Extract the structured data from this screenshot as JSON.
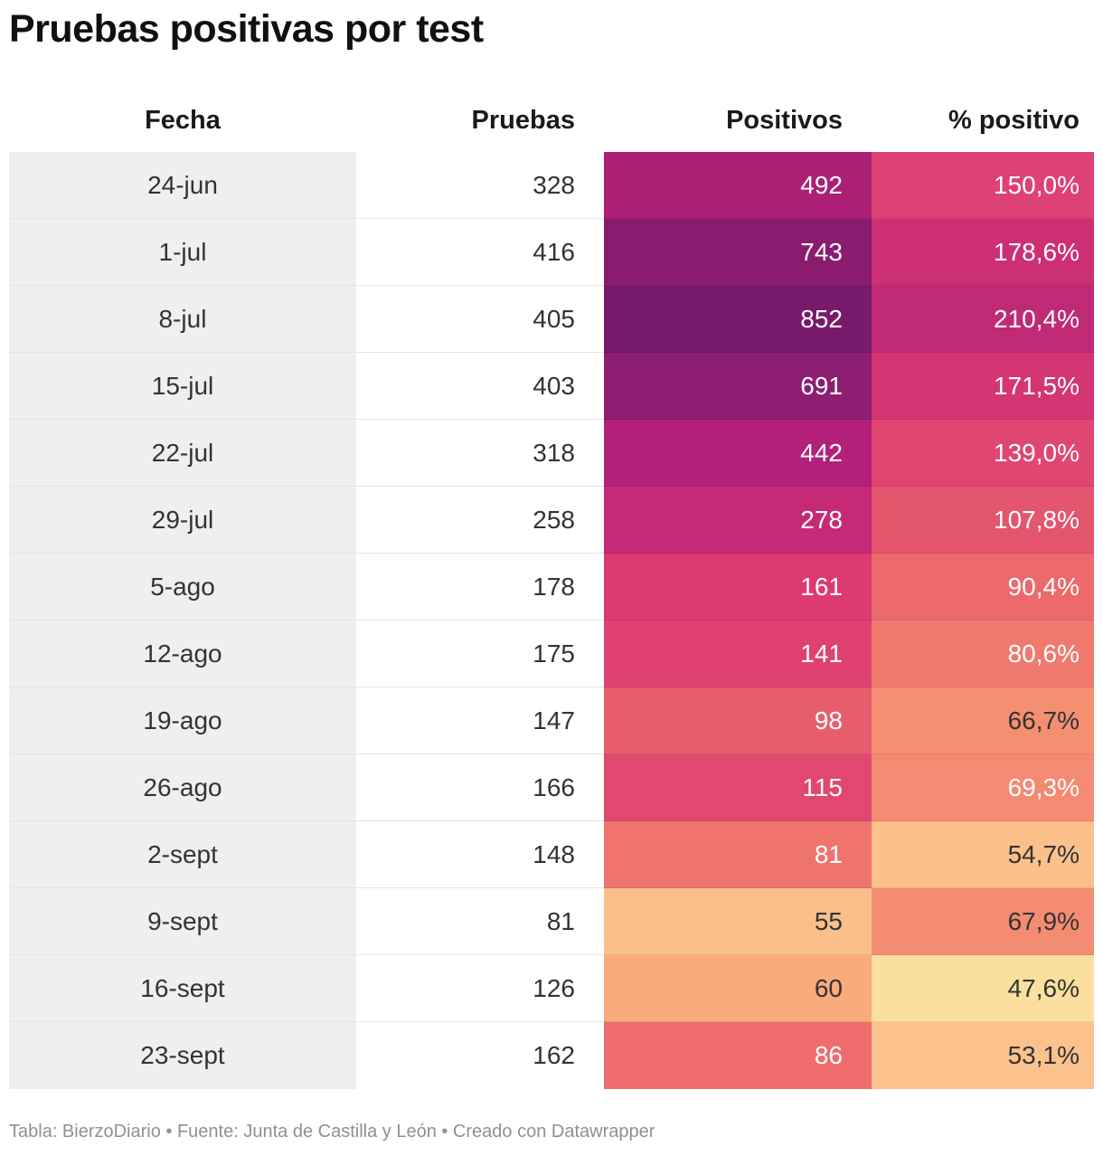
{
  "title": "Pruebas positivas por test",
  "footer": "Tabla: BierzoDiario • Fuente: Junta de Castilla y León • Creado con Datawrapper",
  "chart_data": {
    "type": "table",
    "title": "Pruebas positivas por test",
    "columns": [
      "Fecha",
      "Pruebas",
      "Positivos",
      "% positivo"
    ],
    "rows": [
      {
        "fecha": "24-jun",
        "pruebas": "328",
        "positivos": "492",
        "pct": "150,0%",
        "pos_color": "#ab2074",
        "pct_color": "#de4173",
        "pos_text": "#ffffff",
        "pct_text": "#ffffff"
      },
      {
        "fecha": "1-jul",
        "pruebas": "416",
        "positivos": "743",
        "pct": "178,6%",
        "pos_color": "#891c6f",
        "pct_color": "#cd2f75",
        "pos_text": "#ffffff",
        "pct_text": "#ffffff"
      },
      {
        "fecha": "8-jul",
        "pruebas": "405",
        "positivos": "852",
        "pct": "210,4%",
        "pos_color": "#771a6c",
        "pct_color": "#c02a74",
        "pos_text": "#ffffff",
        "pct_text": "#ffffff"
      },
      {
        "fecha": "15-jul",
        "pruebas": "403",
        "positivos": "691",
        "pct": "171,5%",
        "pos_color": "#8e1e71",
        "pct_color": "#d43573",
        "pos_text": "#ffffff",
        "pct_text": "#ffffff"
      },
      {
        "fecha": "22-jul",
        "pruebas": "318",
        "positivos": "442",
        "pct": "139,0%",
        "pos_color": "#b3207a",
        "pct_color": "#e04672",
        "pos_text": "#ffffff",
        "pct_text": "#ffffff"
      },
      {
        "fecha": "29-jul",
        "pruebas": "258",
        "positivos": "278",
        "pct": "107,8%",
        "pos_color": "#c62a77",
        "pct_color": "#e3566d",
        "pos_text": "#ffffff",
        "pct_text": "#ffffff"
      },
      {
        "fecha": "5-ago",
        "pruebas": "178",
        "positivos": "161",
        "pct": "90,4%",
        "pos_color": "#dd3a72",
        "pct_color": "#ec6a6c",
        "pos_text": "#ffffff",
        "pct_text": "#ffffff"
      },
      {
        "fecha": "12-ago",
        "pruebas": "175",
        "positivos": "141",
        "pct": "80,6%",
        "pos_color": "#df4272",
        "pct_color": "#f07a6e",
        "pos_text": "#ffffff",
        "pct_text": "#ffffff"
      },
      {
        "fecha": "19-ago",
        "pruebas": "147",
        "positivos": "98",
        "pct": "66,7%",
        "pos_color": "#e65e6c",
        "pct_color": "#f58f72",
        "pos_text": "#ffffff",
        "pct_text": "#333333"
      },
      {
        "fecha": "26-ago",
        "pruebas": "166",
        "positivos": "115",
        "pct": "69,3%",
        "pos_color": "#e1486f",
        "pct_color": "#f48a71",
        "pos_text": "#ffffff",
        "pct_text": "#ffffff"
      },
      {
        "fecha": "2-sept",
        "pruebas": "148",
        "positivos": "81",
        "pct": "54,7%",
        "pos_color": "#ef746e",
        "pct_color": "#fcc08b",
        "pos_text": "#ffffff",
        "pct_text": "#333333"
      },
      {
        "fecha": "9-sept",
        "pruebas": "81",
        "positivos": "55",
        "pct": "67,9%",
        "pos_color": "#fbbf8a",
        "pct_color": "#f48c72",
        "pos_text": "#333333",
        "pct_text": "#333333"
      },
      {
        "fecha": "16-sept",
        "pruebas": "126",
        "positivos": "60",
        "pct": "47,6%",
        "pos_color": "#f9ab7b",
        "pct_color": "#fadf9e",
        "pos_text": "#333333",
        "pct_text": "#333333"
      },
      {
        "fecha": "23-sept",
        "pruebas": "162",
        "positivos": "86",
        "pct": "53,1%",
        "pos_color": "#ee6d6c",
        "pct_color": "#fcc28d",
        "pos_text": "#ffffff",
        "pct_text": "#333333"
      }
    ]
  }
}
